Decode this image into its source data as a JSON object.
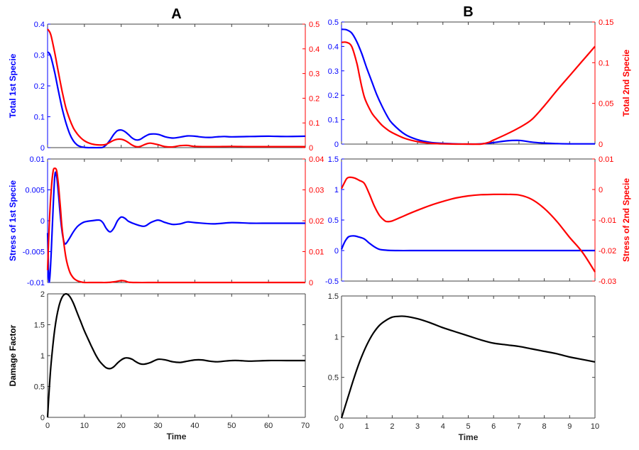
{
  "colors": {
    "left": "#0000ff",
    "right": "#ff0000",
    "black": "#000000",
    "axis": "#404040"
  },
  "chart_data": [
    {
      "id": "A1",
      "type": "line",
      "panel_title": "A",
      "xlim": [
        0,
        70
      ],
      "xticks": [
        0,
        10,
        20,
        30,
        40,
        50,
        60,
        70
      ],
      "show_xticklabels": false,
      "ylabel_left": "Total 1st Specie",
      "ylim_left": [
        0,
        0.4
      ],
      "yticks_left": [
        "0",
        "0.1",
        "0.2",
        "0.3",
        "0.4"
      ],
      "ytick_vals_left": [
        0,
        0.1,
        0.2,
        0.3,
        0.4
      ],
      "ylabel_right": "",
      "ylim_right": [
        0,
        0.5
      ],
      "yticks_right": [
        "0",
        "0.1",
        "0.2",
        "0.3",
        "0.4",
        "0.5"
      ],
      "ytick_vals_right": [
        0,
        0.1,
        0.2,
        0.3,
        0.4,
        0.5
      ],
      "series": [
        {
          "name": "Total 1st Specie",
          "axis": "left",
          "color": "blue",
          "x": [
            0,
            0.5,
            1,
            2,
            3,
            4,
            5,
            6,
            7,
            8,
            9,
            10,
            11,
            12,
            14,
            15,
            16,
            17,
            18,
            19,
            20,
            21,
            22,
            23,
            24,
            25,
            26,
            27,
            28,
            30,
            32,
            34,
            36,
            38,
            40,
            42,
            44,
            46,
            48,
            50,
            55,
            60,
            65,
            70
          ],
          "y": [
            0.31,
            0.305,
            0.29,
            0.24,
            0.18,
            0.125,
            0.08,
            0.045,
            0.022,
            0.009,
            0.003,
            0.001,
            0,
            0,
            0,
            0.001,
            0.01,
            0.025,
            0.043,
            0.055,
            0.057,
            0.052,
            0.042,
            0.031,
            0.025,
            0.026,
            0.033,
            0.04,
            0.044,
            0.043,
            0.035,
            0.031,
            0.034,
            0.038,
            0.037,
            0.034,
            0.033,
            0.035,
            0.036,
            0.035,
            0.036,
            0.037,
            0.036,
            0.037
          ]
        },
        {
          "name": "Total 2nd Specie",
          "axis": "right",
          "color": "red",
          "x": [
            0,
            0.5,
            1,
            2,
            3,
            4,
            5,
            6,
            7,
            8,
            9,
            10,
            11,
            12,
            13,
            14,
            15,
            16,
            17,
            18,
            19,
            20,
            21,
            22,
            23,
            24,
            25,
            26,
            27,
            28,
            30,
            32,
            34,
            36,
            38,
            40,
            45,
            50,
            55,
            60,
            65,
            70
          ],
          "y": [
            0.48,
            0.47,
            0.45,
            0.38,
            0.3,
            0.225,
            0.16,
            0.115,
            0.08,
            0.057,
            0.04,
            0.028,
            0.02,
            0.015,
            0.012,
            0.011,
            0.011,
            0.014,
            0.022,
            0.03,
            0.034,
            0.034,
            0.029,
            0.02,
            0.01,
            0.004,
            0.004,
            0.01,
            0.016,
            0.018,
            0.012,
            0.004,
            0.003,
            0.008,
            0.009,
            0.005,
            0.004,
            0.005,
            0.004,
            0.004,
            0.004,
            0.004
          ]
        }
      ]
    },
    {
      "id": "A2",
      "type": "line",
      "xlim": [
        0,
        70
      ],
      "xticks": [
        0,
        10,
        20,
        30,
        40,
        50,
        60,
        70
      ],
      "show_xticklabels": false,
      "ylabel_left": "Stress of 1st Specie",
      "ylim_left": [
        -0.01,
        0.01
      ],
      "yticks_left": [
        "-0.01",
        "-0.005",
        "0",
        "0.005",
        "0.01"
      ],
      "ytick_vals_left": [
        -0.01,
        -0.005,
        0,
        0.005,
        0.01
      ],
      "ylabel_right": "",
      "ylim_right": [
        0,
        0.04
      ],
      "yticks_right": [
        "0",
        "0.01",
        "0.02",
        "0.03",
        "0.04"
      ],
      "ytick_vals_right": [
        0,
        0.01,
        0.02,
        0.03,
        0.04
      ],
      "series": [
        {
          "name": "Stress of 1st Specie",
          "axis": "left",
          "color": "blue",
          "x": [
            0,
            0.3,
            0.6,
            1,
            1.5,
            2,
            2.5,
            3,
            3.5,
            4,
            4.5,
            5,
            6,
            7,
            8,
            9,
            10,
            12,
            14,
            15,
            16,
            17,
            18,
            19,
            20,
            21,
            22,
            24,
            26,
            27,
            28,
            30,
            32,
            34,
            36,
            38,
            40,
            45,
            50,
            55,
            60,
            65,
            70
          ],
          "y": [
            -0.002,
            -0.009,
            -0.0093,
            -0.005,
            0.002,
            0.0075,
            0.007,
            0.004,
            0.0005,
            -0.002,
            -0.0035,
            -0.0037,
            -0.0028,
            -0.0018,
            -0.001,
            -0.0005,
            -0.0002,
            0,
            0.0001,
            -0.0003,
            -0.0013,
            -0.0018,
            -0.0012,
            0,
            0.0006,
            0.0004,
            -0.0001,
            -0.0006,
            -0.0009,
            -0.0007,
            -0.0003,
            0.0001,
            -0.0003,
            -0.0006,
            -0.0005,
            -0.0002,
            -0.0003,
            -0.0005,
            -0.0003,
            -0.0004,
            -0.0004,
            -0.0004,
            -0.0004
          ]
        },
        {
          "name": "Stress of 2nd Specie",
          "axis": "right",
          "color": "red",
          "x": [
            0,
            0.5,
            1,
            1.5,
            2,
            2.5,
            3,
            3.5,
            4,
            5,
            6,
            7,
            8,
            9,
            10,
            12,
            14,
            16,
            18,
            20,
            21,
            22,
            24,
            30,
            40,
            50,
            60,
            70
          ],
          "y": [
            0.004,
            0.02,
            0.03,
            0.036,
            0.037,
            0.036,
            0.031,
            0.024,
            0.017,
            0.008,
            0.0035,
            0.0015,
            0.0006,
            0.0002,
            0,
            0,
            0,
            0,
            0.0002,
            0.0006,
            0.0005,
            0.0001,
            0,
            0,
            0,
            0,
            0,
            0
          ]
        }
      ]
    },
    {
      "id": "A3",
      "type": "line",
      "xlim": [
        0,
        70
      ],
      "xticks": [
        0,
        10,
        20,
        30,
        40,
        50,
        60,
        70
      ],
      "show_xticklabels": true,
      "xticklabels": [
        "0",
        "10",
        "20",
        "30",
        "40",
        "50",
        "60",
        "70"
      ],
      "xlabel": "Time",
      "ylabel_left": "Damage Factor",
      "ylim_left": [
        0,
        2
      ],
      "yticks_left": [
        "0",
        "0.5",
        "1",
        "1.5",
        "2"
      ],
      "ytick_vals_left": [
        0,
        0.5,
        1,
        1.5,
        2
      ],
      "series": [
        {
          "name": "Damage Factor",
          "axis": "left",
          "color": "black",
          "x": [
            0,
            0.5,
            1,
            2,
            3,
            4,
            5,
            6,
            7,
            8,
            9,
            10,
            11,
            12,
            13,
            14,
            15,
            16,
            17,
            18,
            19,
            20,
            21,
            22,
            23,
            24,
            25,
            26,
            27,
            28,
            30,
            32,
            34,
            36,
            38,
            40,
            42,
            44,
            46,
            48,
            50,
            52,
            55,
            60,
            65,
            70
          ],
          "y": [
            0,
            0.5,
            0.9,
            1.45,
            1.78,
            1.95,
            2.0,
            1.96,
            1.85,
            1.7,
            1.55,
            1.4,
            1.27,
            1.14,
            1.02,
            0.92,
            0.85,
            0.8,
            0.79,
            0.82,
            0.88,
            0.93,
            0.96,
            0.96,
            0.94,
            0.9,
            0.87,
            0.86,
            0.87,
            0.89,
            0.94,
            0.93,
            0.9,
            0.89,
            0.91,
            0.93,
            0.93,
            0.91,
            0.9,
            0.91,
            0.92,
            0.92,
            0.91,
            0.92,
            0.92,
            0.92
          ]
        }
      ]
    },
    {
      "id": "B1",
      "type": "line",
      "panel_title": "B",
      "xlim": [
        0,
        10
      ],
      "xticks": [
        0,
        1,
        2,
        3,
        4,
        5,
        6,
        7,
        8,
        9,
        10
      ],
      "show_xticklabels": false,
      "ylabel_left": "",
      "ylim_left": [
        0,
        0.5
      ],
      "yticks_left": [
        "0",
        "0.1",
        "0.2",
        "0.3",
        "0.4",
        "0.5"
      ],
      "ytick_vals_left": [
        0,
        0.1,
        0.2,
        0.3,
        0.4,
        0.5
      ],
      "ylabel_right": "Total 2nd Specie",
      "ylim_right": [
        0,
        0.15
      ],
      "yticks_right": [
        "0",
        "0.05",
        "0.1",
        "0.15"
      ],
      "ytick_vals_right": [
        0,
        0.05,
        0.1,
        0.15
      ],
      "series": [
        {
          "name": "Total 1st Specie",
          "axis": "left",
          "color": "blue",
          "x": [
            0,
            0.2,
            0.4,
            0.6,
            0.8,
            1,
            1.2,
            1.4,
            1.6,
            1.8,
            2,
            2.5,
            3,
            3.5,
            4,
            4.5,
            5,
            5.5,
            6,
            6.5,
            7,
            7.5,
            8,
            8.5,
            9,
            9.5,
            10
          ],
          "y": [
            0.47,
            0.468,
            0.455,
            0.42,
            0.37,
            0.31,
            0.255,
            0.2,
            0.155,
            0.115,
            0.085,
            0.04,
            0.018,
            0.007,
            0.003,
            0.001,
            0,
            0.001,
            0.006,
            0.013,
            0.015,
            0.008,
            0.004,
            0.002,
            0.001,
            0.001,
            0.001
          ]
        },
        {
          "name": "Total 2nd Specie",
          "axis": "right",
          "color": "red",
          "x": [
            0,
            0.2,
            0.4,
            0.6,
            0.7,
            0.8,
            0.9,
            1,
            1.2,
            1.4,
            1.6,
            1.8,
            2,
            2.5,
            3,
            3.5,
            4,
            4.5,
            5,
            5.5,
            5.8,
            6,
            6.5,
            7,
            7.5,
            8,
            8.5,
            9,
            9.5,
            10
          ],
          "y": [
            0.125,
            0.125,
            0.12,
            0.1,
            0.085,
            0.07,
            0.058,
            0.05,
            0.038,
            0.03,
            0.023,
            0.018,
            0.014,
            0.007,
            0.003,
            0.001,
            0.0003,
            0,
            0,
            0,
            0.002,
            0.005,
            0.012,
            0.02,
            0.03,
            0.047,
            0.066,
            0.084,
            0.102,
            0.12
          ]
        }
      ]
    },
    {
      "id": "B2",
      "type": "line",
      "xlim": [
        0,
        10
      ],
      "xticks": [
        0,
        1,
        2,
        3,
        4,
        5,
        6,
        7,
        8,
        9,
        10
      ],
      "show_xticklabels": false,
      "ylabel_left": "",
      "ylim_left": [
        -0.5,
        1.5
      ],
      "yticks_left": [
        "-0.5",
        "0",
        "0.5",
        "1",
        "1.5"
      ],
      "ytick_vals_left": [
        -0.5,
        0,
        0.5,
        1,
        1.5
      ],
      "ylabel_right": "Stress of 2nd Specie",
      "ylim_right": [
        -0.03,
        0.01
      ],
      "yticks_right": [
        "-0.03",
        "-0.02",
        "-0.01",
        "0",
        "0.01"
      ],
      "ytick_vals_right": [
        -0.03,
        -0.02,
        -0.01,
        0,
        0.01
      ],
      "series": [
        {
          "name": "Stress of 1st Specie",
          "axis": "left",
          "color": "blue",
          "x": [
            0,
            0.1,
            0.2,
            0.3,
            0.5,
            0.7,
            0.9,
            1.1,
            1.3,
            1.5,
            1.8,
            2.2,
            3,
            4,
            5,
            6,
            7,
            8,
            9,
            10
          ],
          "y": [
            0.02,
            0.12,
            0.19,
            0.23,
            0.24,
            0.22,
            0.19,
            0.12,
            0.06,
            0.02,
            0.005,
            0,
            0,
            0,
            0,
            0,
            0,
            0,
            0,
            0
          ]
        },
        {
          "name": "Stress of 2nd Specie",
          "axis": "right",
          "color": "red",
          "x": [
            0,
            0.1,
            0.2,
            0.3,
            0.5,
            0.7,
            0.9,
            1.1,
            1.3,
            1.5,
            1.7,
            1.8,
            2,
            2.5,
            3,
            3.5,
            4,
            4.5,
            5,
            5.5,
            6,
            6.5,
            7,
            7.5,
            8,
            8.5,
            9,
            9.5,
            10
          ],
          "y": [
            0.0003,
            0.002,
            0.0035,
            0.004,
            0.0038,
            0.003,
            0.002,
            -0.0015,
            -0.0055,
            -0.0085,
            -0.0102,
            -0.0105,
            -0.0103,
            -0.0085,
            -0.0068,
            -0.0052,
            -0.0039,
            -0.0028,
            -0.0021,
            -0.0017,
            -0.0016,
            -0.0016,
            -0.0018,
            -0.0032,
            -0.0062,
            -0.0105,
            -0.0157,
            -0.0205,
            -0.027
          ]
        }
      ]
    },
    {
      "id": "B3",
      "type": "line",
      "xlim": [
        0,
        10
      ],
      "xticks": [
        0,
        1,
        2,
        3,
        4,
        5,
        6,
        7,
        8,
        9,
        10
      ],
      "show_xticklabels": true,
      "xticklabels": [
        "0",
        "1",
        "2",
        "3",
        "4",
        "5",
        "6",
        "7",
        "8",
        "9",
        "10"
      ],
      "xlabel": "Time",
      "ylabel_left": "",
      "ylim_left": [
        0,
        1.5
      ],
      "yticks_left": [
        "0",
        "0.5",
        "1",
        "1.5"
      ],
      "ytick_vals_left": [
        0,
        0.5,
        1,
        1.5
      ],
      "series": [
        {
          "name": "Damage Factor",
          "axis": "left",
          "color": "black",
          "x": [
            0,
            0.25,
            0.5,
            0.75,
            1,
            1.25,
            1.5,
            1.75,
            2,
            2.25,
            2.5,
            3,
            3.5,
            4,
            4.5,
            5,
            5.5,
            6,
            6.5,
            7,
            7.5,
            8,
            8.5,
            9,
            9.5,
            10
          ],
          "y": [
            0,
            0.25,
            0.5,
            0.72,
            0.9,
            1.04,
            1.14,
            1.2,
            1.24,
            1.25,
            1.25,
            1.22,
            1.17,
            1.11,
            1.06,
            1.01,
            0.96,
            0.92,
            0.9,
            0.88,
            0.85,
            0.82,
            0.79,
            0.75,
            0.72,
            0.69
          ]
        }
      ]
    }
  ]
}
